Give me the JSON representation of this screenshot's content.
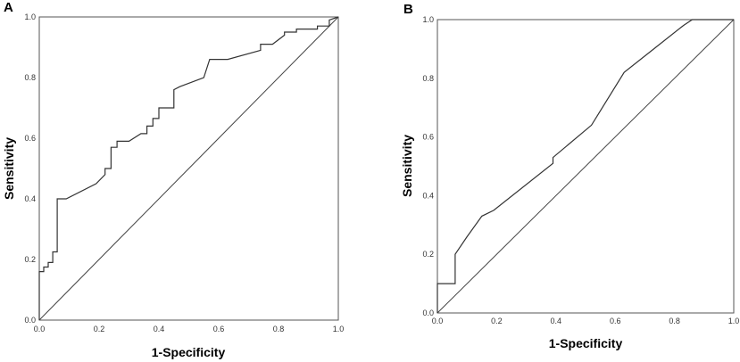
{
  "chart_data": [
    {
      "type": "line",
      "panel_label": "A",
      "xlabel": "1-Specificity",
      "ylabel": "Sensitivity",
      "xlim": [
        0,
        1
      ],
      "ylim": [
        0,
        1
      ],
      "x_ticks": [
        "0.0",
        "0.2",
        "0.4",
        "0.6",
        "0.8",
        "1.0"
      ],
      "y_ticks": [
        "0.0",
        "0.2",
        "0.4",
        "0.6",
        "0.8",
        "1.0"
      ],
      "series": [
        {
          "type": "roc",
          "x": [
            0.0,
            0.0,
            0.015,
            0.015,
            0.03,
            0.03,
            0.045,
            0.045,
            0.06,
            0.06,
            0.09,
            0.19,
            0.22,
            0.22,
            0.24,
            0.24,
            0.26,
            0.26,
            0.3,
            0.34,
            0.36,
            0.36,
            0.38,
            0.38,
            0.4,
            0.4,
            0.45,
            0.45,
            0.47,
            0.55,
            0.57,
            0.63,
            0.74,
            0.74,
            0.78,
            0.82,
            0.82,
            0.86,
            0.86,
            0.93,
            0.93,
            0.97,
            0.97,
            1.0
          ],
          "y": [
            0.0,
            0.16,
            0.16,
            0.175,
            0.175,
            0.19,
            0.19,
            0.225,
            0.225,
            0.4,
            0.4,
            0.45,
            0.48,
            0.5,
            0.5,
            0.57,
            0.57,
            0.59,
            0.59,
            0.615,
            0.615,
            0.64,
            0.64,
            0.665,
            0.665,
            0.7,
            0.7,
            0.76,
            0.77,
            0.8,
            0.86,
            0.86,
            0.89,
            0.91,
            0.91,
            0.94,
            0.95,
            0.95,
            0.96,
            0.96,
            0.97,
            0.97,
            0.99,
            1.0
          ]
        }
      ],
      "reference_line": {
        "x": [
          0,
          1
        ],
        "y": [
          0,
          1
        ]
      }
    },
    {
      "type": "line",
      "panel_label": "B",
      "xlabel": "1-Specificity",
      "ylabel": "Sensitivity",
      "xlim": [
        0,
        1
      ],
      "ylim": [
        0,
        1
      ],
      "x_ticks": [
        "0.0",
        "0.2",
        "0.4",
        "0.6",
        "0.8",
        "1.0"
      ],
      "y_ticks": [
        "0.0",
        "0.2",
        "0.4",
        "0.6",
        "0.8",
        "1.0"
      ],
      "series": [
        {
          "type": "roc",
          "x": [
            0.0,
            0.0,
            0.06,
            0.06,
            0.1,
            0.15,
            0.19,
            0.39,
            0.39,
            0.52,
            0.63,
            0.73,
            0.83,
            0.86,
            1.0
          ],
          "y": [
            0.0,
            0.1,
            0.1,
            0.2,
            0.26,
            0.33,
            0.35,
            0.51,
            0.53,
            0.64,
            0.82,
            0.9,
            0.98,
            1.0,
            1.0
          ]
        }
      ],
      "reference_line": {
        "x": [
          0,
          1
        ],
        "y": [
          0,
          1
        ]
      }
    }
  ]
}
